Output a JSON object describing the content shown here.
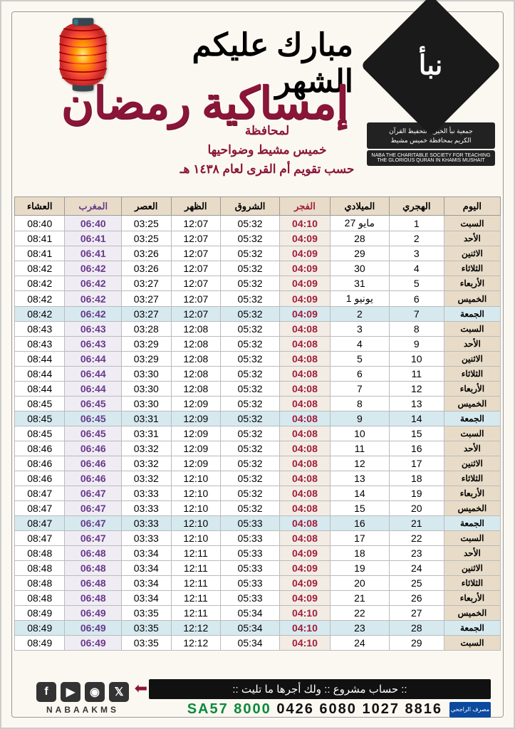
{
  "logo": {
    "name": "نبأ",
    "line1": "جمعية نبأ الخيرية لتحفيظ القرآن",
    "line2": "الكريم بمحافظة خميس مشيط",
    "sub": "NABA THE CHARITABLE SOCIETY FOR TEACHING THE GLORIOUS QURAN IN KHAMIS MUSHAIT"
  },
  "greet": "مبارك عليكم الشهر",
  "title": "إمساكية رمضان",
  "loc1": "لمحافظة",
  "loc2": "خميس مشيط وضواحيها",
  "loc3": "حسب تقويم أم القرى لعام ١٤٣٨ هـ",
  "headers": [
    "اليوم",
    "الهجري",
    "الميلادي",
    "الفجر",
    "الشروق",
    "الظهر",
    "العصر",
    "المغرب",
    "العشاء"
  ],
  "rows": [
    [
      "السبت",
      "1",
      "مايو 27",
      "04:10",
      "05:32",
      "12:07",
      "03:25",
      "06:40",
      "08:40",
      0
    ],
    [
      "الأحد",
      "2",
      "28",
      "04:09",
      "05:32",
      "12:07",
      "03:25",
      "06:41",
      "08:41",
      0
    ],
    [
      "الاثنين",
      "3",
      "29",
      "04:09",
      "05:32",
      "12:07",
      "03:26",
      "06:41",
      "08:41",
      0
    ],
    [
      "الثلاثاء",
      "4",
      "30",
      "04:09",
      "05:32",
      "12:07",
      "03:26",
      "06:42",
      "08:42",
      0
    ],
    [
      "الأربعاء",
      "5",
      "31",
      "04:09",
      "05:32",
      "12:07",
      "03:27",
      "06:42",
      "08:42",
      0
    ],
    [
      "الخميس",
      "6",
      "يونيو 1",
      "04:09",
      "05:32",
      "12:07",
      "03:27",
      "06:42",
      "08:42",
      0
    ],
    [
      "الجمعة",
      "7",
      "2",
      "04:09",
      "05:32",
      "12:07",
      "03:27",
      "06:42",
      "08:42",
      1
    ],
    [
      "السبت",
      "8",
      "3",
      "04:08",
      "05:32",
      "12:08",
      "03:28",
      "06:43",
      "08:43",
      0
    ],
    [
      "الأحد",
      "9",
      "4",
      "04:08",
      "05:32",
      "12:08",
      "03:29",
      "06:43",
      "08:43",
      0
    ],
    [
      "الاثنين",
      "10",
      "5",
      "04:08",
      "05:32",
      "12:08",
      "03:29",
      "06:44",
      "08:44",
      0
    ],
    [
      "الثلاثاء",
      "11",
      "6",
      "04:08",
      "05:32",
      "12:08",
      "03:30",
      "06:44",
      "08:44",
      0
    ],
    [
      "الأربعاء",
      "12",
      "7",
      "04:08",
      "05:32",
      "12:08",
      "03:30",
      "06:44",
      "08:44",
      0
    ],
    [
      "الخميس",
      "13",
      "8",
      "04:08",
      "05:32",
      "12:09",
      "03:30",
      "06:45",
      "08:45",
      0
    ],
    [
      "الجمعة",
      "14",
      "9",
      "04:08",
      "05:32",
      "12:09",
      "03:31",
      "06:45",
      "08:45",
      1
    ],
    [
      "السبت",
      "15",
      "10",
      "04:08",
      "05:32",
      "12:09",
      "03:31",
      "06:45",
      "08:45",
      0
    ],
    [
      "الأحد",
      "16",
      "11",
      "04:08",
      "05:32",
      "12:09",
      "03:32",
      "06:46",
      "08:46",
      0
    ],
    [
      "الاثنين",
      "17",
      "12",
      "04:08",
      "05:32",
      "12:09",
      "03:32",
      "06:46",
      "08:46",
      0
    ],
    [
      "الثلاثاء",
      "18",
      "13",
      "04:08",
      "05:32",
      "12:10",
      "03:32",
      "06:46",
      "08:46",
      0
    ],
    [
      "الأربعاء",
      "19",
      "14",
      "04:08",
      "05:32",
      "12:10",
      "03:33",
      "06:47",
      "08:47",
      0
    ],
    [
      "الخميس",
      "20",
      "15",
      "04:08",
      "05:32",
      "12:10",
      "03:33",
      "06:47",
      "08:47",
      0
    ],
    [
      "الجمعة",
      "21",
      "16",
      "04:08",
      "05:33",
      "12:10",
      "03:33",
      "06:47",
      "08:47",
      1
    ],
    [
      "السبت",
      "22",
      "17",
      "04:08",
      "05:33",
      "12:10",
      "03:33",
      "06:47",
      "08:47",
      0
    ],
    [
      "الأحد",
      "23",
      "18",
      "04:09",
      "05:33",
      "12:11",
      "03:34",
      "06:48",
      "08:48",
      0
    ],
    [
      "الاثنين",
      "24",
      "19",
      "04:09",
      "05:33",
      "12:11",
      "03:34",
      "06:48",
      "08:48",
      0
    ],
    [
      "الثلاثاء",
      "25",
      "20",
      "04:09",
      "05:33",
      "12:11",
      "03:34",
      "06:48",
      "08:48",
      0
    ],
    [
      "الأربعاء",
      "26",
      "21",
      "04:09",
      "05:33",
      "12:11",
      "03:34",
      "06:48",
      "08:48",
      0
    ],
    [
      "الخميس",
      "27",
      "22",
      "04:10",
      "05:34",
      "12:11",
      "03:35",
      "06:49",
      "08:49",
      0
    ],
    [
      "الجمعة",
      "28",
      "23",
      "04:10",
      "05:34",
      "12:12",
      "03:35",
      "06:49",
      "08:49",
      1
    ],
    [
      "السبت",
      "29",
      "24",
      "04:10",
      "05:34",
      "12:12",
      "03:35",
      "06:49",
      "08:49",
      0
    ]
  ],
  "bankbar": ":: حساب مشروع :: ولك أجرها ما تليت ::",
  "iban_g": "SA57 8000",
  "iban_k": "0426 6080 1027 8816",
  "banklogo": "مصرف الراجحي",
  "social": "NABAAKMS"
}
